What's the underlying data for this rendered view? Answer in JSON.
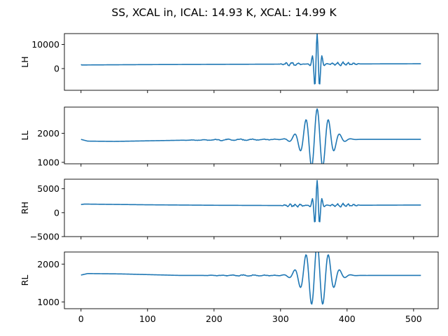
{
  "title": "SS, XCAL in, ICAL: 14.93 K, XCAL: 14.99 K",
  "chart_data": [
    {
      "type": "line",
      "ylabel": "LH",
      "xlim": [
        -25,
        537
      ],
      "ylim": [
        -9000,
        14500
      ],
      "yticks": [
        0,
        10000
      ],
      "xticks": [
        0,
        100,
        200,
        300,
        400,
        500
      ],
      "show_xticklabels": false,
      "baseline": [
        [
          0,
          1700
        ],
        [
          1,
          1500
        ],
        [
          100,
          1650
        ],
        [
          200,
          1750
        ],
        [
          300,
          1850
        ],
        [
          511,
          2000
        ]
      ],
      "noise": [
        {
          "from": 298,
          "to": 335,
          "amp": 800,
          "period": 9
        },
        {
          "from": 368,
          "to": 420,
          "amp": 900,
          "period": 8
        }
      ],
      "burst": {
        "center": 355,
        "amp": 12500,
        "width": 4.5,
        "period": 7.5,
        "skew": 3.2
      }
    },
    {
      "type": "line",
      "ylabel": "LL",
      "xlim": [
        -25,
        537
      ],
      "ylim": [
        950,
        2900
      ],
      "yticks": [
        1000,
        2000
      ],
      "xticks": [
        0,
        100,
        200,
        300,
        400,
        500
      ],
      "show_xticklabels": false,
      "baseline": [
        [
          0,
          1790
        ],
        [
          10,
          1730
        ],
        [
          50,
          1720
        ],
        [
          150,
          1760
        ],
        [
          300,
          1790
        ],
        [
          511,
          1790
        ]
      ],
      "noise": [
        {
          "from": 150,
          "to": 320,
          "amp": 30,
          "period": 18
        }
      ],
      "burst": {
        "center": 355,
        "amp": 1050,
        "width": 18,
        "period": 17,
        "skew": 0
      }
    },
    {
      "type": "line",
      "ylabel": "RH",
      "xlim": [
        -25,
        537
      ],
      "ylim": [
        -5000,
        7000
      ],
      "yticks": [
        -5000,
        0,
        5000
      ],
      "xticks": [
        0,
        100,
        200,
        300,
        400,
        500
      ],
      "show_xticklabels": false,
      "baseline": [
        [
          0,
          1700
        ],
        [
          5,
          1800
        ],
        [
          100,
          1650
        ],
        [
          200,
          1550
        ],
        [
          300,
          1500
        ],
        [
          511,
          1600
        ]
      ],
      "noise": [
        {
          "from": 300,
          "to": 340,
          "amp": 450,
          "period": 8
        },
        {
          "from": 368,
          "to": 420,
          "amp": 450,
          "period": 8
        }
      ],
      "burst": {
        "center": 355,
        "amp": 5200,
        "width": 4.5,
        "period": 7.5,
        "skew": 0
      }
    },
    {
      "type": "line",
      "ylabel": "RL",
      "xlim": [
        -25,
        537
      ],
      "ylim": [
        820,
        2320
      ],
      "yticks": [
        1000,
        2000
      ],
      "xticks": [
        0,
        100,
        200,
        300,
        400,
        500
      ],
      "show_xticklabels": true,
      "baseline": [
        [
          0,
          1710
        ],
        [
          10,
          1750
        ],
        [
          60,
          1740
        ],
        [
          150,
          1700
        ],
        [
          300,
          1700
        ],
        [
          511,
          1700
        ]
      ],
      "noise": [
        {
          "from": 180,
          "to": 310,
          "amp": 20,
          "period": 16
        }
      ],
      "burst": {
        "center": 355,
        "amp": 850,
        "width": 18,
        "period": 17,
        "skew": 0
      }
    }
  ],
  "style": {
    "line_color": "#1f77b4"
  }
}
